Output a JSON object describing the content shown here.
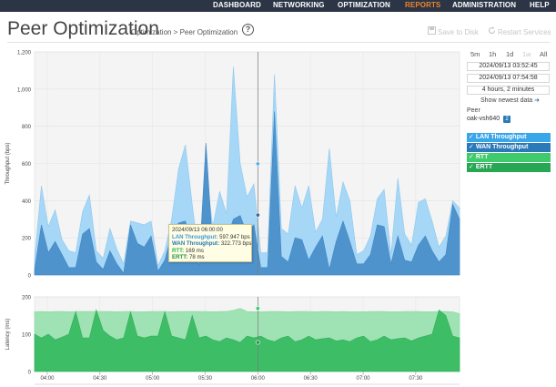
{
  "nav": {
    "items": [
      {
        "label": "DASHBOARD",
        "active": false
      },
      {
        "label": "NETWORKING",
        "active": false
      },
      {
        "label": "OPTIMIZATION",
        "active": false
      },
      {
        "label": "REPORTS",
        "active": true
      },
      {
        "label": "ADMINISTRATION",
        "active": false
      },
      {
        "label": "HELP",
        "active": false
      }
    ],
    "active_color": "#f0842c"
  },
  "header": {
    "title": "Peer Optimization",
    "breadcrumb": "Optimization > Peer Optimization",
    "help_icon": "question-circle-icon",
    "save_label": "Save to Disk",
    "restart_label": "Restart Services"
  },
  "controls": {
    "ranges": [
      {
        "label": "5m",
        "disabled": false
      },
      {
        "label": "1h",
        "disabled": false
      },
      {
        "label": "1d",
        "disabled": false
      },
      {
        "label": "1w",
        "disabled": true
      },
      {
        "label": "All",
        "disabled": false
      }
    ],
    "start_time": "2024/09/13 03:52:45",
    "end_time": "2024/09/13 07:54:58",
    "duration": "4 hours, 2 minutes",
    "show_newest": "Show newest data",
    "peer_label": "Peer",
    "peer_value": "oak-vsh640",
    "peer_count": "2"
  },
  "legend": [
    {
      "label": "LAN Throughput",
      "color": "#3aa6ea"
    },
    {
      "label": "WAN Throughput",
      "color": "#2a7ab8"
    },
    {
      "label": "RTT",
      "color": "#3fcb6c"
    },
    {
      "label": "ERTT",
      "color": "#27a653"
    }
  ],
  "tooltip": {
    "time": "2024/09/13 06:00:00",
    "lan_label": "LAN Throughput:",
    "lan_value": "597.947 bps",
    "wan_label": "WAN Throughput:",
    "wan_value": "322.773 bps",
    "rtt_label": "RTT:",
    "rtt_value": "169 ms",
    "ertt_label": "ERTT:",
    "ertt_value": "78 ms"
  },
  "chart_data": [
    {
      "type": "area",
      "ylabel": "Throughput (bps)",
      "ylim": [
        0,
        1200
      ],
      "yticks": [
        "0",
        "200",
        "400",
        "600",
        "800",
        "1,000",
        "1,200"
      ],
      "grid": true,
      "series": [
        {
          "name": "LAN Throughput",
          "color": "#a7d7f6",
          "values": [
            90,
            480,
            260,
            350,
            190,
            130,
            120,
            340,
            430,
            130,
            90,
            250,
            140,
            60,
            290,
            280,
            270,
            290,
            50,
            130,
            300,
            570,
            700,
            380,
            90,
            560,
            260,
            450,
            330,
            1120,
            600,
            420,
            490,
            120,
            120,
            1080,
            250,
            220,
            480,
            360,
            480,
            230,
            300,
            680,
            310,
            500,
            400,
            110,
            130,
            210,
            410,
            460,
            110,
            520,
            220,
            160,
            390,
            410,
            290,
            150,
            210,
            400,
            360
          ]
        },
        {
          "name": "WAN Throughput",
          "color": "#4f93cc",
          "values": [
            30,
            270,
            120,
            180,
            110,
            40,
            40,
            220,
            250,
            70,
            30,
            130,
            60,
            10,
            270,
            170,
            150,
            210,
            20,
            80,
            220,
            280,
            290,
            150,
            50,
            710,
            140,
            180,
            190,
            300,
            320,
            220,
            270,
            40,
            40,
            880,
            100,
            70,
            200,
            190,
            80,
            150,
            210,
            30,
            180,
            290,
            180,
            60,
            60,
            110,
            270,
            260,
            60,
            210,
            80,
            70,
            160,
            210,
            130,
            70,
            110,
            380,
            300
          ]
        }
      ],
      "marker_x": "06:00",
      "marker_values": [
        597.947,
        322.773
      ]
    },
    {
      "type": "area",
      "ylabel": "Latency (ms)",
      "ylim": [
        0,
        200
      ],
      "yticks": [
        "0",
        "100",
        "200"
      ],
      "grid": true,
      "xticks": [
        "04:00",
        "04:30",
        "05:00",
        "05:30",
        "06:00",
        "06:30",
        "07:00",
        "07:30"
      ],
      "series": [
        {
          "name": "RTT",
          "color": "#9fe2b3",
          "values": [
            160,
            161,
            160,
            161,
            161,
            160,
            161,
            161,
            161,
            161,
            161,
            161,
            160,
            161,
            161,
            160,
            160,
            161,
            161,
            161,
            160,
            161,
            161,
            161,
            161,
            161,
            160,
            161,
            161,
            164,
            169,
            161,
            160,
            160,
            161,
            161,
            161,
            160,
            161,
            161,
            161,
            160,
            161,
            161,
            160,
            161,
            160,
            160,
            160,
            161,
            161,
            161,
            160,
            160,
            161,
            161,
            161,
            160,
            160,
            161,
            161,
            160,
            155
          ]
        },
        {
          "name": "ERTT",
          "color": "#3dbd66",
          "values": [
            100,
            90,
            100,
            85,
            92,
            100,
            160,
            90,
            90,
            165,
            110,
            95,
            85,
            90,
            160,
            95,
            90,
            95,
            95,
            160,
            95,
            90,
            85,
            150,
            90,
            95,
            85,
            80,
            90,
            85,
            78,
            95,
            90,
            95,
            85,
            80,
            90,
            95,
            80,
            85,
            95,
            85,
            88,
            90,
            82,
            85,
            80,
            90,
            95,
            80,
            85,
            95,
            85,
            88,
            90,
            82,
            90,
            95,
            100,
            165,
            150,
            95,
            90
          ]
        }
      ],
      "marker_x": "06:00",
      "marker_values": [
        169,
        78
      ]
    }
  ]
}
